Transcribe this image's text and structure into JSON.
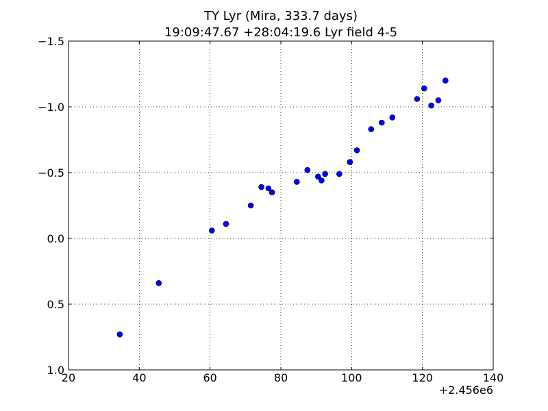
{
  "chart_data": {
    "type": "scatter",
    "title": "TY Lyr (Mira, 333.7 days)",
    "subtitle": "19:09:47.67 +28:04:19.6 Lyr field 4-5",
    "xlabel": "",
    "ylabel": "",
    "x_offset_label": "+2.456e6",
    "xlim": [
      20,
      140
    ],
    "ylim": [
      1.0,
      -1.5
    ],
    "y_inverted": true,
    "grid": true,
    "x_ticks": [
      20,
      40,
      60,
      80,
      100,
      120,
      140
    ],
    "x_tick_labels": [
      "20",
      "40",
      "60",
      "80",
      "100",
      "120",
      "140"
    ],
    "y_ticks": [
      -1.5,
      -1.0,
      -0.5,
      0.0,
      0.5,
      1.0
    ],
    "y_tick_labels": [
      "−1.5",
      "−1.0",
      "−0.5",
      "0.0",
      "0.5",
      "1.0"
    ],
    "marker_color": "#0000ff",
    "marker_edge_color": "#000000",
    "series": [
      {
        "points": [
          [
            34.5,
            0.73
          ],
          [
            45.5,
            0.34
          ],
          [
            60.5,
            -0.06
          ],
          [
            64.5,
            -0.11
          ],
          [
            71.5,
            -0.25
          ],
          [
            74.5,
            -0.39
          ],
          [
            76.5,
            -0.38
          ],
          [
            77.5,
            -0.35
          ],
          [
            84.5,
            -0.43
          ],
          [
            87.5,
            -0.52
          ],
          [
            90.5,
            -0.47
          ],
          [
            91.5,
            -0.44
          ],
          [
            92.5,
            -0.49
          ],
          [
            96.5,
            -0.49
          ],
          [
            99.5,
            -0.58
          ],
          [
            101.5,
            -0.67
          ],
          [
            105.5,
            -0.83
          ],
          [
            108.5,
            -0.88
          ],
          [
            111.5,
            -0.92
          ],
          [
            118.5,
            -1.06
          ],
          [
            120.5,
            -1.14
          ],
          [
            122.5,
            -1.01
          ],
          [
            124.5,
            -1.05
          ],
          [
            126.5,
            -1.2
          ]
        ]
      }
    ]
  }
}
